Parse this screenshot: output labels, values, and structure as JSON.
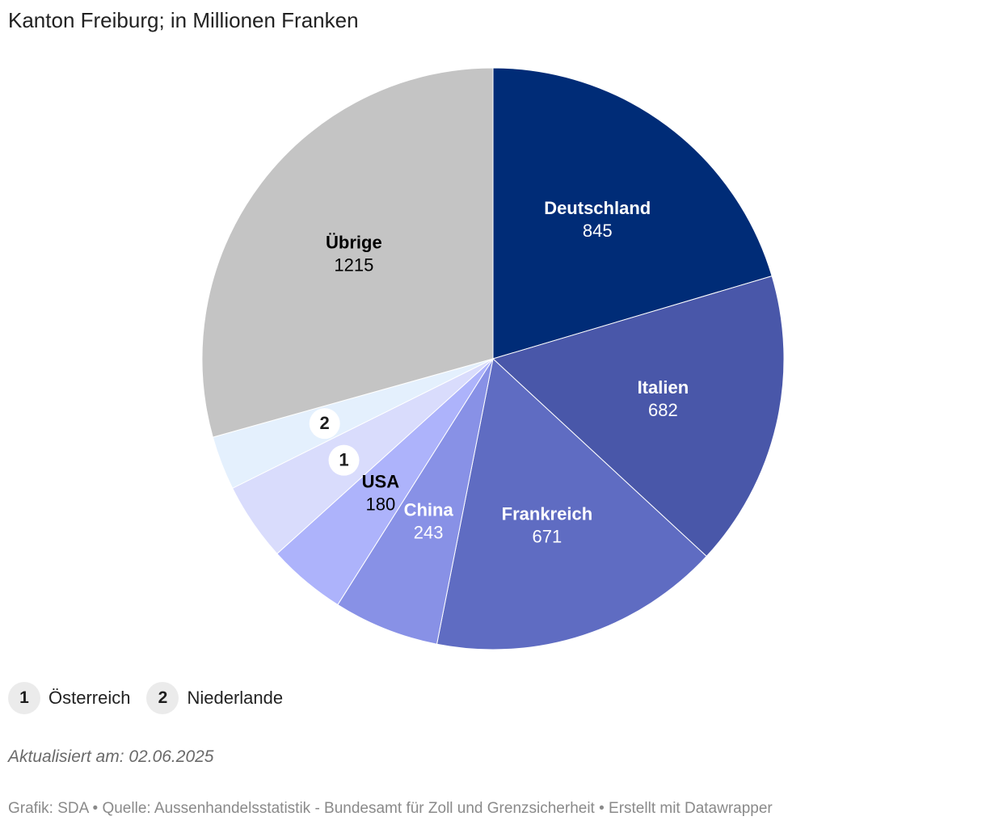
{
  "chart_data": {
    "type": "pie",
    "title": "Kanton Freiburg; in Millionen Franken",
    "unit": "Millionen Franken",
    "slices": [
      {
        "label": "Deutschland",
        "value": 845,
        "color": "#002c77",
        "label_color": "#ffffff",
        "show_label": true
      },
      {
        "label": "Italien",
        "value": 682,
        "color": "#4957a9",
        "label_color": "#ffffff",
        "show_label": true
      },
      {
        "label": "Frankreich",
        "value": 671,
        "color": "#5f6cc2",
        "label_color": "#ffffff",
        "show_label": true
      },
      {
        "label": "China",
        "value": 243,
        "color": "#8891e6",
        "label_color": "#ffffff",
        "show_label": true
      },
      {
        "label": "USA",
        "value": 180,
        "color": "#adb3fb",
        "label_color": "#000000",
        "show_label": true
      },
      {
        "label": "Österreich",
        "value": 180,
        "color": "#d9dcfc",
        "label_color": "#000000",
        "show_label": false,
        "marker": "1"
      },
      {
        "label": "Niederlande",
        "value": 124,
        "color": "#e4f0fd",
        "label_color": "#000000",
        "show_label": false,
        "marker": "2"
      },
      {
        "label": "Übrige",
        "value": 1215,
        "color": "#c4c4c4",
        "label_color": "#000000",
        "show_label": true
      }
    ],
    "legend": [
      {
        "marker": "1",
        "label": "Österreich"
      },
      {
        "marker": "2",
        "label": "Niederlande"
      }
    ]
  },
  "notes": {
    "updated": "Aktualisiert am: 02.06.2025"
  },
  "footer": {
    "text": "Grafik: SDA • Quelle: Aussenhandelsstatistik - Bundesamt für Zoll und Grenzsicherheit • Erstellt mit Datawrapper"
  }
}
